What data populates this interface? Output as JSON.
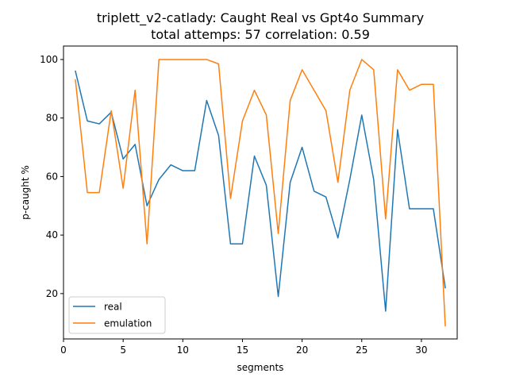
{
  "chart_data": {
    "type": "line",
    "title": "triplett_v2-catlady: Caught Real vs Gpt4o Summary",
    "subtitle": "total attemps: 57 correlation: 0.59",
    "xlabel": "segments",
    "ylabel": "p-caught %",
    "xlim": [
      0,
      33
    ],
    "ylim": [
      4.5,
      104.6
    ],
    "xticks": [
      0,
      5,
      10,
      15,
      20,
      25,
      30
    ],
    "yticks": [
      20,
      40,
      60,
      80,
      100
    ],
    "grid": false,
    "legend_position": "lower-left",
    "x": [
      1,
      2,
      3,
      4,
      5,
      6,
      7,
      8,
      9,
      10,
      11,
      12,
      13,
      14,
      15,
      16,
      17,
      18,
      19,
      20,
      21,
      22,
      23,
      24,
      25,
      26,
      27,
      28,
      29,
      30,
      31,
      32
    ],
    "series": [
      {
        "name": "real",
        "color": "#1f77b4",
        "values": [
          96,
          79,
          78,
          82,
          66,
          71,
          50,
          59,
          64,
          62,
          62,
          86,
          74,
          37,
          37,
          67,
          57,
          19,
          58,
          70,
          55,
          53,
          39,
          59,
          81,
          59,
          14,
          76,
          49,
          49,
          49,
          22
        ]
      },
      {
        "name": "emulation",
        "color": "#ff7f0e",
        "values": [
          93,
          54.5,
          54.5,
          82.5,
          56,
          89.5,
          37,
          100,
          100,
          100,
          100,
          100,
          98.5,
          52.5,
          79,
          89.5,
          81,
          40.5,
          86,
          96.5,
          89.5,
          82.5,
          58,
          89.5,
          100,
          96.5,
          45.5,
          96.5,
          89.5,
          91.5,
          91.5,
          9
        ]
      }
    ]
  }
}
